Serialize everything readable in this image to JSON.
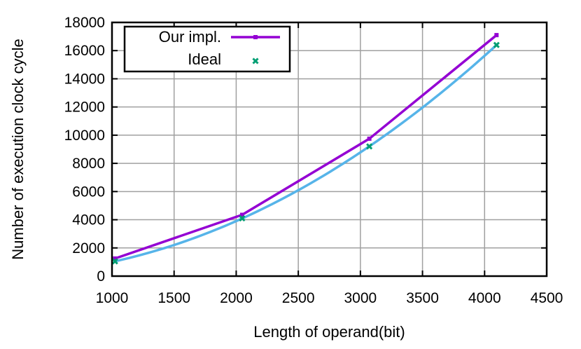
{
  "chart_data": {
    "type": "line",
    "title": "",
    "xlabel": "Length of operand(bit)",
    "ylabel": "Number of execution clock cycle",
    "xlim": [
      1000,
      4500
    ],
    "ylim": [
      0,
      18000
    ],
    "xticks": [
      1000,
      1500,
      2000,
      2500,
      3000,
      3500,
      4000,
      4500
    ],
    "yticks": [
      0,
      2000,
      4000,
      6000,
      8000,
      10000,
      12000,
      14000,
      16000,
      18000
    ],
    "grid": true,
    "legend_position": "top-left",
    "series": [
      {
        "name": "Our impl.",
        "style": "line-with-points",
        "color": "#9400d3",
        "x": [
          1024,
          2048,
          3072,
          4096
        ],
        "y": [
          1250,
          4350,
          9750,
          17100
        ]
      },
      {
        "name": "Ideal",
        "style": "points",
        "color": "#009e73",
        "x": [
          1024,
          2048,
          3072,
          4096
        ],
        "y": [
          1050,
          4100,
          9200,
          16400
        ]
      },
      {
        "name": "",
        "style": "smooth-curve",
        "color": "#56b4e9",
        "x": [
          1024,
          2048,
          3072,
          4096
        ],
        "y": [
          1050,
          4100,
          9200,
          16400
        ]
      }
    ]
  }
}
